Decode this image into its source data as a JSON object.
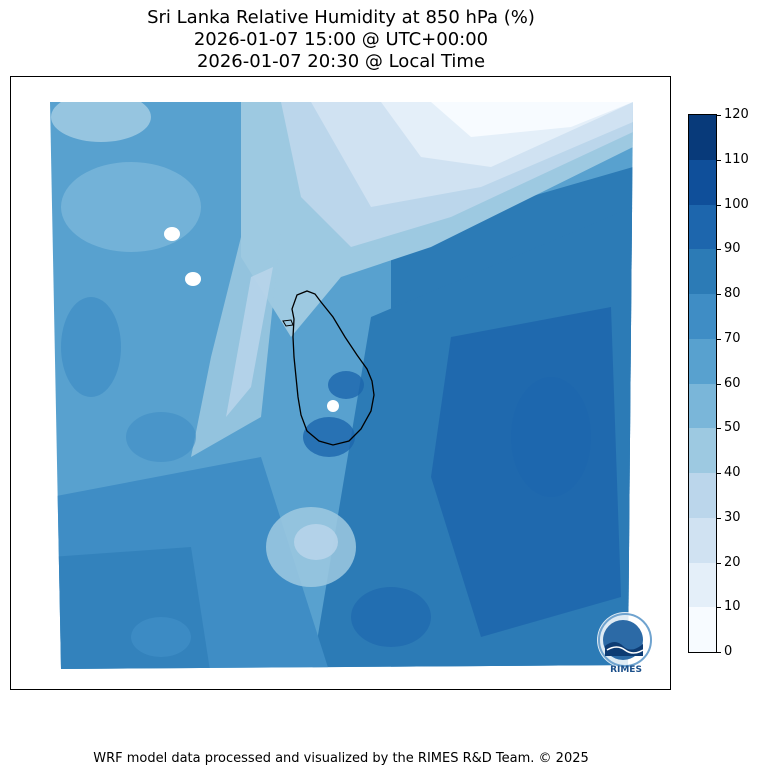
{
  "title": {
    "line1": "Sri Lanka Relative Humidity at 850 hPa (%)",
    "line2": "2026-01-07 15:00 @ UTC+00:00",
    "line3": "2026-01-07 20:30 @ Local Time"
  },
  "footer": "WRF model data processed and visualized by the RIMES R&D Team. © 2025",
  "logo": {
    "text": "RIMES"
  },
  "colorbar": {
    "ticks": [
      "0",
      "10",
      "20",
      "30",
      "40",
      "50",
      "60",
      "70",
      "80",
      "90",
      "100",
      "110",
      "120"
    ],
    "colors": [
      "#f7fbff",
      "#e4eff9",
      "#d0e2f2",
      "#bbd6eb",
      "#9dc9e1",
      "#7ab6d9",
      "#58a1cf",
      "#3f8dc5",
      "#2c7bb6",
      "#1d66ad",
      "#0f4f9a",
      "#083a7a"
    ]
  },
  "map": {
    "title": "Relative Humidity at 850 hPa",
    "region": "Sri Lanka",
    "unit": "%",
    "range": [
      0,
      120
    ]
  }
}
